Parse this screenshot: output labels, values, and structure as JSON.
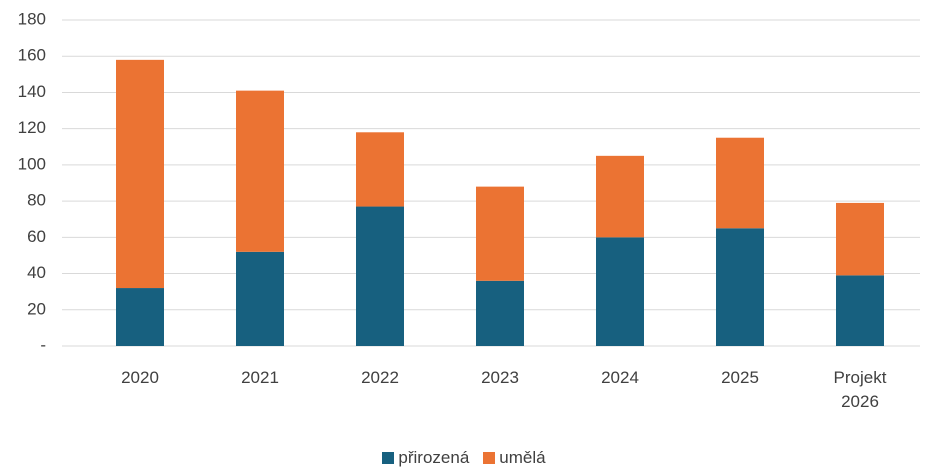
{
  "chart_data": {
    "type": "bar",
    "stacked": true,
    "categories": [
      "2020",
      "2021",
      "2022",
      "2023",
      "2024",
      "2025",
      "Projekt 2026"
    ],
    "series": [
      {
        "name": "přirozená",
        "color": "#17607f",
        "values": [
          32,
          52,
          77,
          36,
          60,
          65,
          39
        ]
      },
      {
        "name": "umělá",
        "color": "#eb7333",
        "values": [
          126,
          89,
          41,
          52,
          45,
          50,
          40
        ]
      }
    ],
    "ylim": [
      0,
      180
    ],
    "yticks": [
      {
        "value": 0,
        "label": "-"
      },
      20,
      40,
      60,
      80,
      100,
      120,
      140,
      160,
      180
    ],
    "grid": true,
    "legend": "bottom"
  }
}
